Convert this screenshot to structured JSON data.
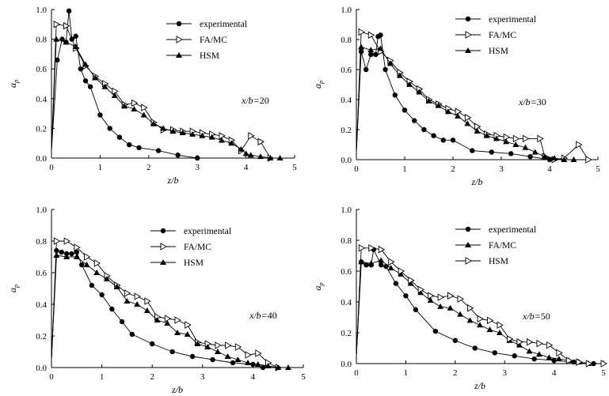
{
  "chart_data": [
    {
      "type": "line",
      "xlabel": "z/b",
      "ylabel": "a_p",
      "xlim": [
        0,
        5
      ],
      "ylim": [
        0,
        1.0
      ],
      "xticks": [
        "0",
        "1",
        "2",
        "3",
        "4",
        "5"
      ],
      "yticks": [
        "0.0",
        "0.2",
        "0.4",
        "0.6",
        "0.8",
        "1.0"
      ],
      "annotation": "x/b=20",
      "legend_position": "top-center",
      "series": [
        {
          "name": "experimental",
          "marker": "circle",
          "x": [
            0,
            0.12,
            0.22,
            0.3,
            0.36,
            0.42,
            0.5,
            0.6,
            0.7,
            0.8,
            1.0,
            1.2,
            1.4,
            1.6,
            1.8,
            2.2,
            2.6,
            3.0
          ],
          "y": [
            0.05,
            0.66,
            0.8,
            0.78,
            0.99,
            0.8,
            0.82,
            0.6,
            0.52,
            0.48,
            0.29,
            0.2,
            0.14,
            0.09,
            0.07,
            0.05,
            0.02,
            0.0
          ]
        },
        {
          "name": "FA/MC",
          "marker": "triangle-right",
          "x": [
            0,
            0.1,
            0.3,
            0.5,
            0.7,
            0.9,
            1.1,
            1.3,
            1.5,
            1.7,
            1.9,
            2.1,
            2.3,
            2.5,
            2.7,
            2.9,
            3.1,
            3.3,
            3.5,
            3.7,
            3.9,
            4.1,
            4.3,
            4.5
          ],
          "y": [
            0.05,
            0.9,
            0.89,
            0.74,
            0.62,
            0.55,
            0.5,
            0.45,
            0.36,
            0.37,
            0.34,
            0.24,
            0.19,
            0.19,
            0.18,
            0.18,
            0.17,
            0.16,
            0.15,
            0.12,
            0.05,
            0.15,
            0.11,
            0.0
          ]
        },
        {
          "name": "HSM",
          "marker": "triangle-up",
          "x": [
            0,
            0.1,
            0.3,
            0.5,
            0.7,
            0.9,
            1.1,
            1.3,
            1.5,
            1.7,
            1.9,
            2.1,
            2.3,
            2.5,
            2.7,
            2.9,
            3.1,
            3.3,
            3.5,
            3.7,
            3.9,
            4.0,
            4.1,
            4.3,
            4.5,
            4.7
          ],
          "y": [
            0.05,
            0.8,
            0.78,
            0.75,
            0.63,
            0.54,
            0.48,
            0.42,
            0.35,
            0.33,
            0.29,
            0.23,
            0.2,
            0.18,
            0.17,
            0.16,
            0.15,
            0.14,
            0.12,
            0.1,
            0.06,
            0.03,
            0.02,
            0.01,
            0.0,
            0.0
          ]
        }
      ]
    },
    {
      "type": "line",
      "xlabel": "z/b",
      "ylabel": "a_p",
      "xlim": [
        0,
        5
      ],
      "ylim": [
        0,
        1.0
      ],
      "xticks": [
        "0",
        "1",
        "2",
        "3",
        "4",
        "5"
      ],
      "yticks": [
        "0.0",
        "0.2",
        "0.4",
        "0.6",
        "0.8",
        "1.0"
      ],
      "annotation": "x/b=30",
      "legend_position": "top-center",
      "series": [
        {
          "name": "experimental",
          "marker": "circle",
          "x": [
            0,
            0.1,
            0.2,
            0.3,
            0.4,
            0.45,
            0.5,
            0.6,
            0.8,
            1.0,
            1.2,
            1.4,
            1.6,
            1.8,
            2.0,
            2.4,
            2.8,
            3.2,
            3.6,
            4.0
          ],
          "y": [
            0.05,
            0.72,
            0.6,
            0.7,
            0.7,
            0.82,
            0.83,
            0.6,
            0.43,
            0.33,
            0.26,
            0.2,
            0.16,
            0.13,
            0.13,
            0.06,
            0.05,
            0.04,
            0.02,
            0.0
          ]
        },
        {
          "name": "FA/MC",
          "marker": "triangle-right",
          "x": [
            0,
            0.1,
            0.3,
            0.5,
            0.7,
            0.9,
            1.1,
            1.3,
            1.5,
            1.7,
            1.9,
            2.1,
            2.3,
            2.5,
            2.7,
            2.9,
            3.1,
            3.3,
            3.5,
            3.8,
            3.9,
            4.1,
            4.3,
            4.6,
            4.8
          ],
          "y": [
            0.05,
            0.85,
            0.83,
            0.72,
            0.66,
            0.58,
            0.52,
            0.47,
            0.4,
            0.37,
            0.34,
            0.32,
            0.28,
            0.22,
            0.17,
            0.16,
            0.15,
            0.14,
            0.14,
            0.14,
            0.02,
            0.0,
            0.01,
            0.1,
            0.0
          ]
        },
        {
          "name": "HSM",
          "marker": "triangle-up",
          "x": [
            0,
            0.1,
            0.3,
            0.5,
            0.7,
            0.9,
            1.1,
            1.3,
            1.5,
            1.7,
            1.9,
            2.1,
            2.3,
            2.5,
            2.7,
            2.9,
            3.1,
            3.3,
            3.5,
            3.7,
            3.9,
            4.1,
            4.3,
            4.5
          ],
          "y": [
            0.05,
            0.75,
            0.73,
            0.74,
            0.64,
            0.56,
            0.5,
            0.45,
            0.39,
            0.36,
            0.32,
            0.29,
            0.24,
            0.19,
            0.16,
            0.14,
            0.12,
            0.1,
            0.08,
            0.05,
            0.02,
            0.01,
            0.0,
            0.0
          ]
        }
      ]
    },
    {
      "type": "line",
      "xlabel": "z/b",
      "ylabel": "a_p",
      "xlim": [
        0,
        5
      ],
      "ylim": [
        0,
        1.0
      ],
      "xticks": [
        "0",
        "1",
        "2",
        "3",
        "4",
        "5"
      ],
      "yticks": [
        "0.0",
        "0.2",
        "0.4",
        "0.6",
        "0.8",
        "1.0"
      ],
      "annotation": "x/b=40",
      "legend_position": "top-center",
      "series": [
        {
          "name": "experimental",
          "marker": "circle",
          "x": [
            0,
            0.1,
            0.2,
            0.3,
            0.4,
            0.5,
            0.6,
            0.8,
            1.0,
            1.2,
            1.4,
            1.6,
            2.0,
            2.4,
            2.8,
            3.2,
            3.6,
            4.0,
            4.2
          ],
          "y": [
            0.05,
            0.74,
            0.73,
            0.72,
            0.72,
            0.73,
            0.65,
            0.52,
            0.46,
            0.37,
            0.29,
            0.21,
            0.15,
            0.1,
            0.07,
            0.05,
            0.03,
            0.02,
            0.0
          ]
        },
        {
          "name": "FA/MC",
          "marker": "triangle-right",
          "x": [
            0,
            0.1,
            0.3,
            0.5,
            0.7,
            0.9,
            1.1,
            1.3,
            1.5,
            1.7,
            1.9,
            2.1,
            2.3,
            2.5,
            2.7,
            2.9,
            3.1,
            3.3,
            3.5,
            3.7,
            3.9,
            4.1,
            4.3,
            4.5
          ],
          "y": [
            0.05,
            0.8,
            0.8,
            0.76,
            0.7,
            0.66,
            0.58,
            0.52,
            0.47,
            0.45,
            0.42,
            0.32,
            0.31,
            0.3,
            0.27,
            0.16,
            0.15,
            0.14,
            0.14,
            0.13,
            0.08,
            0.09,
            0.03,
            0.0
          ]
        },
        {
          "name": "HSM",
          "marker": "triangle-up",
          "x": [
            0,
            0.1,
            0.3,
            0.5,
            0.7,
            0.9,
            1.1,
            1.3,
            1.5,
            1.7,
            1.9,
            2.1,
            2.3,
            2.5,
            2.7,
            2.9,
            3.1,
            3.3,
            3.5,
            3.7,
            3.9,
            4.1,
            4.3,
            4.5,
            4.7
          ],
          "y": [
            0.05,
            0.71,
            0.7,
            0.7,
            0.65,
            0.6,
            0.56,
            0.51,
            0.42,
            0.4,
            0.36,
            0.3,
            0.28,
            0.22,
            0.21,
            0.15,
            0.13,
            0.1,
            0.07,
            0.05,
            0.03,
            0.02,
            0.01,
            0.0,
            0.0
          ]
        }
      ]
    },
    {
      "type": "line",
      "xlabel": "z/b",
      "ylabel": "a_p",
      "xlim": [
        0,
        5
      ],
      "ylim": [
        0,
        1.0
      ],
      "xticks": [
        "0",
        "1",
        "2",
        "3",
        "4",
        "5"
      ],
      "yticks": [
        "0.0",
        "0.2",
        "0.4",
        "0.6",
        "0.8",
        "1.0"
      ],
      "annotation": "x/b=50",
      "legend_position": "top-center",
      "series": [
        {
          "name": "experimental",
          "marker": "circle",
          "x": [
            0,
            0.1,
            0.2,
            0.3,
            0.35,
            0.5,
            0.6,
            0.8,
            1.0,
            1.2,
            1.6,
            2.0,
            2.4,
            2.8,
            3.2,
            3.6,
            4.0,
            4.4,
            4.8
          ],
          "y": [
            0.05,
            0.66,
            0.64,
            0.64,
            0.74,
            0.64,
            0.63,
            0.52,
            0.44,
            0.35,
            0.21,
            0.15,
            0.1,
            0.07,
            0.05,
            0.03,
            0.02,
            0.01,
            0.0
          ]
        },
        {
          "name": "FA/MC",
          "marker": "triangle-up",
          "x": [
            0,
            0.1,
            0.3,
            0.5,
            0.7,
            0.9,
            1.1,
            1.3,
            1.5,
            1.7,
            1.9,
            2.1,
            2.3,
            2.5,
            2.7,
            2.9,
            3.1,
            3.3,
            3.5,
            3.7,
            3.9,
            4.1,
            4.3,
            4.5,
            4.7
          ],
          "y": [
            0.05,
            0.66,
            0.65,
            0.67,
            0.62,
            0.58,
            0.52,
            0.46,
            0.41,
            0.37,
            0.36,
            0.32,
            0.28,
            0.25,
            0.22,
            0.2,
            0.15,
            0.12,
            0.08,
            0.06,
            0.04,
            0.03,
            0.02,
            0.01,
            0.0
          ]
        },
        {
          "name": "HSM",
          "marker": "triangle-right",
          "x": [
            0,
            0.1,
            0.3,
            0.5,
            0.7,
            0.9,
            1.1,
            1.3,
            1.5,
            1.7,
            1.9,
            2.1,
            2.3,
            2.5,
            2.7,
            2.9,
            3.1,
            3.3,
            3.5,
            3.7,
            3.9,
            4.1,
            4.3,
            4.5,
            4.7,
            5.0
          ],
          "y": [
            0.05,
            0.75,
            0.75,
            0.74,
            0.66,
            0.6,
            0.54,
            0.48,
            0.44,
            0.43,
            0.44,
            0.42,
            0.36,
            0.29,
            0.28,
            0.25,
            0.16,
            0.14,
            0.14,
            0.13,
            0.12,
            0.07,
            0.02,
            0.01,
            0.0,
            0.0
          ]
        }
      ]
    }
  ]
}
